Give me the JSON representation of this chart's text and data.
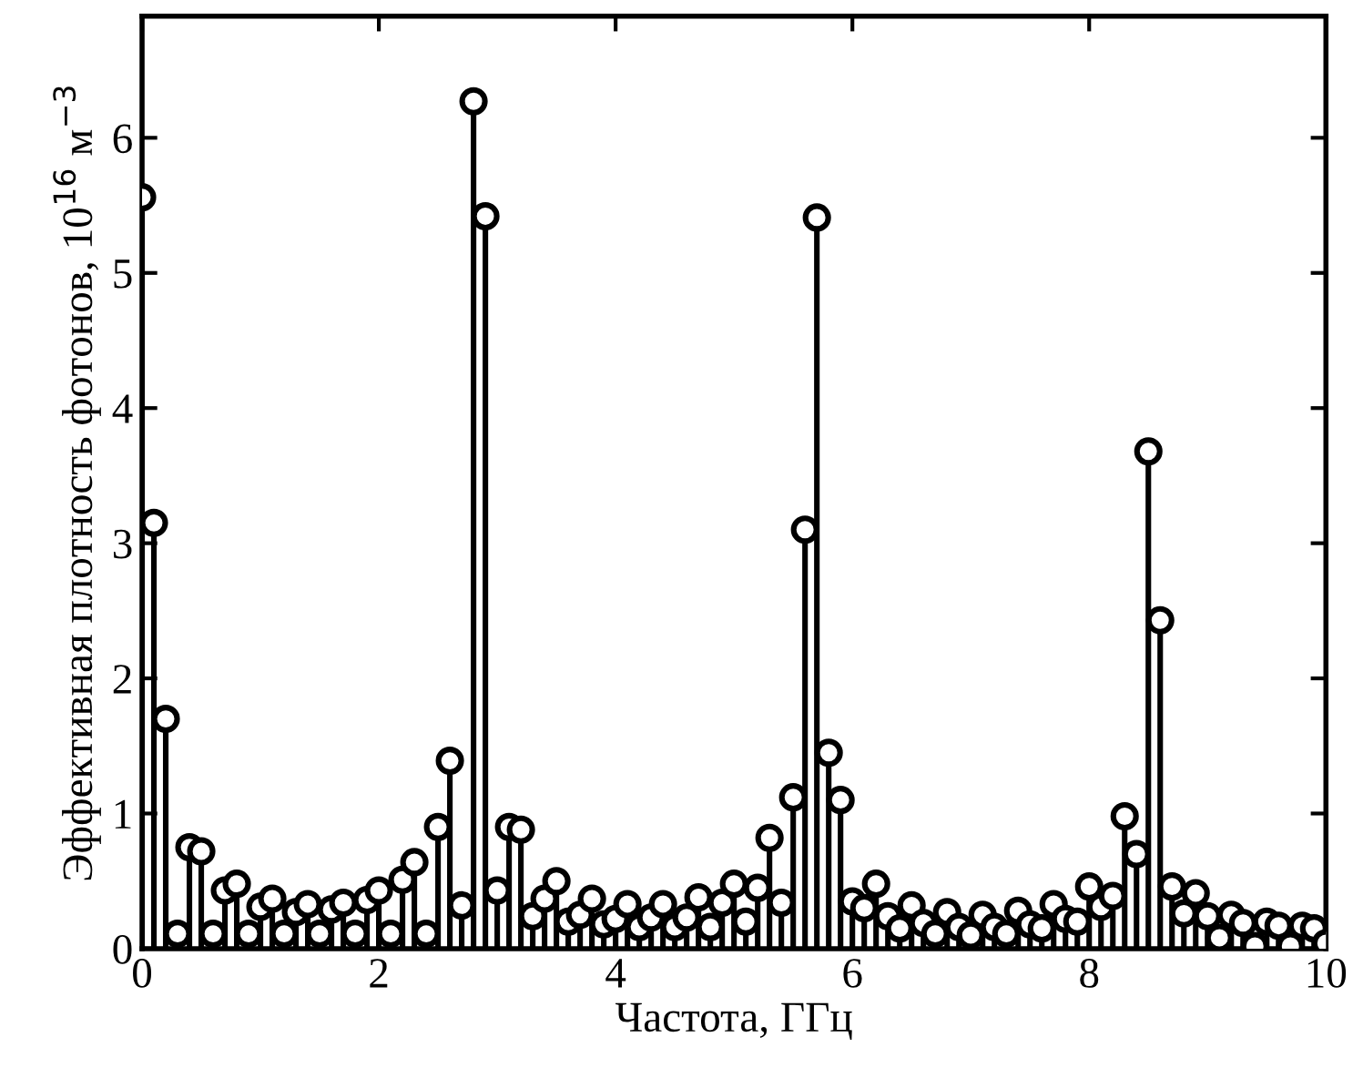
{
  "chart_data": {
    "type": "lollipop",
    "xlabel": "Частота, ГГц",
    "ylabel": "Эффективная плотность фотонов, 10$^{16}$ м$^{−3}$",
    "x": [
      0,
      0.1,
      0.2,
      0.3,
      0.4,
      0.5,
      0.6,
      0.7,
      0.8,
      0.9,
      1,
      1.1,
      1.2,
      1.3,
      1.4,
      1.5,
      1.6,
      1.7,
      1.8,
      1.9,
      2,
      2.1,
      2.2,
      2.3,
      2.4,
      2.5,
      2.6,
      2.7,
      2.8,
      2.9,
      3,
      3.1,
      3.2,
      3.3,
      3.4,
      3.5,
      3.6,
      3.7,
      3.8,
      3.9,
      4,
      4.1,
      4.2,
      4.3,
      4.4,
      4.5,
      4.6,
      4.7,
      4.8,
      4.9,
      5,
      5.1,
      5.2,
      5.3,
      5.4,
      5.5,
      5.6,
      5.7,
      5.8,
      5.9,
      6,
      6.1,
      6.2,
      6.3,
      6.4,
      6.5,
      6.6,
      6.7,
      6.8,
      6.9,
      7,
      7.1,
      7.2,
      7.3,
      7.4,
      7.5,
      7.6,
      7.7,
      7.8,
      7.9,
      8,
      8.1,
      8.2,
      8.3,
      8.4,
      8.5,
      8.6,
      8.7,
      8.8,
      8.9,
      9,
      9.1,
      9.2,
      9.3,
      9.4,
      9.5,
      9.6,
      9.7,
      9.8,
      9.9,
      10
    ],
    "values": [
      5.56,
      3.15,
      1.7,
      0.11,
      0.75,
      0.72,
      0.11,
      0.43,
      0.48,
      0.11,
      0.31,
      0.37,
      0.11,
      0.27,
      0.33,
      0.11,
      0.29,
      0.34,
      0.11,
      0.36,
      0.43,
      0.11,
      0.51,
      0.64,
      0.11,
      0.9,
      1.39,
      0.32,
      6.27,
      5.42,
      0.43,
      0.9,
      0.88,
      0.24,
      0.37,
      0.5,
      0.2,
      0.25,
      0.37,
      0.18,
      0.22,
      0.33,
      0.16,
      0.23,
      0.33,
      0.16,
      0.23,
      0.38,
      0.16,
      0.34,
      0.48,
      0.2,
      0.45,
      0.82,
      0.34,
      1.12,
      3.1,
      5.41,
      1.45,
      1.1,
      0.35,
      0.3,
      0.48,
      0.24,
      0.15,
      0.32,
      0.19,
      0.11,
      0.27,
      0.16,
      0.1,
      0.25,
      0.16,
      0.11,
      0.28,
      0.18,
      0.15,
      0.33,
      0.22,
      0.2,
      0.46,
      0.31,
      0.39,
      0.98,
      0.7,
      3.68,
      2.43,
      0.46,
      0.26,
      0.41,
      0.24,
      0.08,
      0.25,
      0.19,
      0.02,
      0.2,
      0.17,
      0.02,
      0.17,
      0.15,
      0.04
    ],
    "color": "#000000",
    "marker": "circle",
    "xlim": [
      0,
      10
    ],
    "xticks": [
      0,
      2,
      4,
      6,
      8,
      10
    ],
    "ylim": [
      0,
      6.9
    ],
    "yticks": [
      0,
      1,
      2,
      3,
      4,
      5,
      6
    ],
    "grid": false
  }
}
